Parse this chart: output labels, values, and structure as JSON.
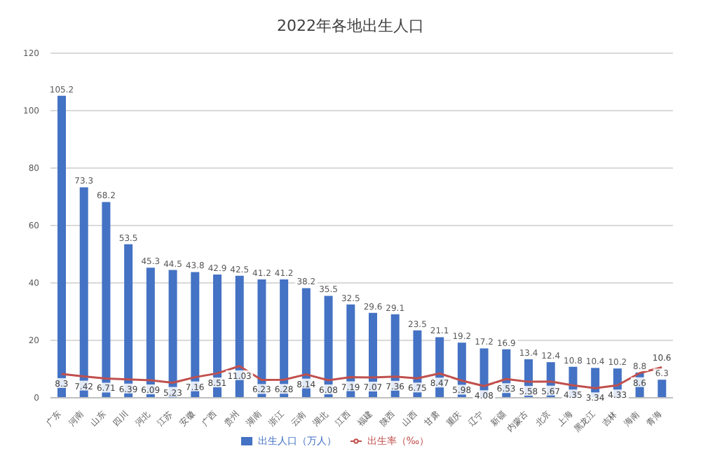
{
  "chart_data": {
    "type": "bar",
    "title": "2022年各地出生人口",
    "categories": [
      "广东",
      "河南",
      "山东",
      "四川",
      "河北",
      "江苏",
      "安徽",
      "广西",
      "贵州",
      "湖南",
      "浙江",
      "云南",
      "湖北",
      "江西",
      "福建",
      "陕西",
      "山西",
      "甘肃",
      "重庆",
      "辽宁",
      "新疆",
      "内蒙古",
      "北京",
      "上海",
      "黑龙江",
      "吉林",
      "海南",
      "青海"
    ],
    "series": [
      {
        "name": "出生人口（万人）",
        "color": "#4472c4",
        "values": [
          105.2,
          73.3,
          68.2,
          53.5,
          45.3,
          44.5,
          43.8,
          42.9,
          42.5,
          41.2,
          41.2,
          38.2,
          35.5,
          32.5,
          29.6,
          29.1,
          23.5,
          21.1,
          19.2,
          17.2,
          16.9,
          13.4,
          12.4,
          10.8,
          10.4,
          10.2,
          8.8,
          6.3
        ]
      },
      {
        "name": "出生率（‰）",
        "type": "line",
        "color": "#c0504d",
        "values": [
          8.3,
          7.42,
          6.71,
          6.39,
          6.09,
          5.23,
          7.16,
          8.51,
          11.03,
          6.23,
          6.28,
          8.14,
          6.08,
          7.19,
          7.07,
          7.36,
          6.75,
          8.47,
          5.98,
          4.08,
          6.53,
          5.58,
          5.67,
          4.35,
          3.34,
          4.33,
          8.6,
          10.6
        ]
      }
    ],
    "ylim": [
      0,
      120
    ],
    "yticks": [
      0,
      20,
      40,
      60,
      80,
      100,
      120
    ],
    "grid": "y",
    "legend": "bottom",
    "data_labels": true,
    "marker": "none"
  }
}
